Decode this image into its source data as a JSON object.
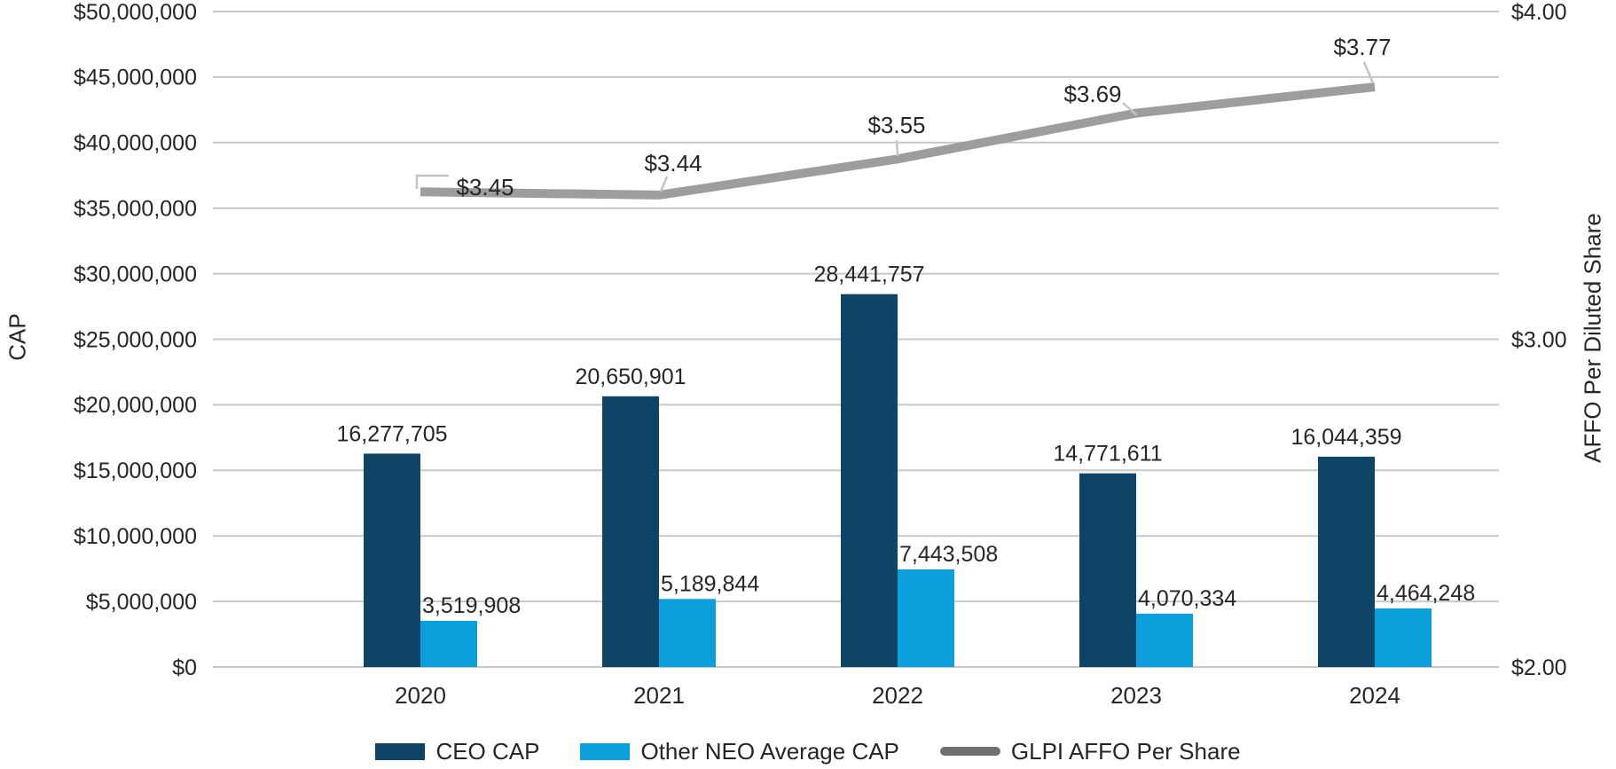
{
  "chart_data": {
    "type": "combo-bar-line",
    "categories": [
      "2020",
      "2021",
      "2022",
      "2023",
      "2024"
    ],
    "series": [
      {
        "name": "CEO CAP",
        "type": "bar",
        "axis": "left",
        "color": "#0e4566",
        "values": [
          16277705,
          20650901,
          28441757,
          14771611,
          16044359
        ],
        "labels": [
          "16,277,705",
          "20,650,901",
          "28,441,757",
          "14,771,611",
          "16,044,359"
        ]
      },
      {
        "name": "Other NEO Average CAP",
        "type": "bar",
        "axis": "left",
        "color": "#0b9fdb",
        "values": [
          3519908,
          5189844,
          7443508,
          4070334,
          4464248
        ],
        "labels": [
          "3,519,908",
          "5,189,844",
          "7,443,508",
          "4,070,334",
          "4,464,248"
        ]
      },
      {
        "name": "GLPI AFFO Per Share",
        "type": "line",
        "axis": "right",
        "color": "#9d9d9d",
        "legend_color": "#6f6f6f",
        "values": [
          3.45,
          3.44,
          3.55,
          3.69,
          3.77
        ],
        "labels": [
          "$3.45",
          "$3.44",
          "$3.55",
          "$3.69",
          "$3.77"
        ]
      }
    ],
    "left_axis": {
      "title": "CAP",
      "min": 0,
      "max": 50000000,
      "step": 5000000,
      "tick_labels": [
        "$0",
        "$5,000,000",
        "$10,000,000",
        "$15,000,000",
        "$20,000,000",
        "$25,000,000",
        "$30,000,000",
        "$35,000,000",
        "$40,000,000",
        "$45,000,000",
        "$50,000,000"
      ]
    },
    "right_axis": {
      "title": "AFFO Per Diluted Share",
      "min": 2.0,
      "max": 4.0,
      "tick_values": [
        2.0,
        3.0,
        4.0
      ],
      "tick_labels": [
        "$2.00",
        "$3.00",
        "$4.00"
      ]
    },
    "grid": true,
    "legend_position": "bottom",
    "colors": {
      "gridline": "#c8c8c8",
      "leader_line": "#c4c4c4",
      "text": "#262626",
      "background": "#ffffff"
    }
  }
}
